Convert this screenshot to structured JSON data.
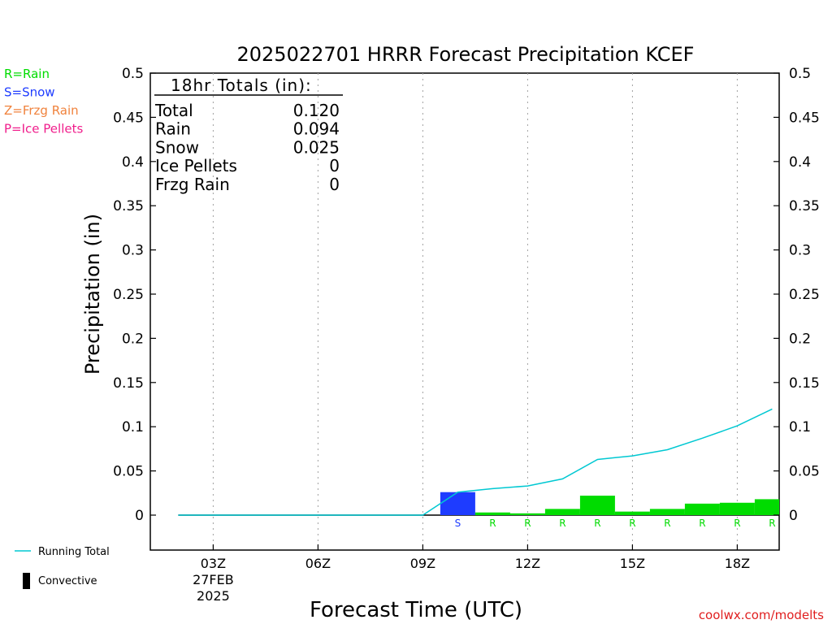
{
  "chart_data": {
    "type": "bar",
    "title": "2025022701 HRRR Forecast Precipitation KCEF",
    "xlabel": "Forecast Time (UTC)",
    "ylabel": "Precipitation (in)",
    "ylim": [
      0,
      0.5
    ],
    "y_ticks": [
      "0",
      "0.05",
      "0.1",
      "0.15",
      "0.2",
      "0.25",
      "0.3",
      "0.35",
      "0.4",
      "0.45",
      "0.5"
    ],
    "y_tick_values": [
      0,
      0.05,
      0.1,
      0.15,
      0.2,
      0.25,
      0.3,
      0.35,
      0.4,
      0.45,
      0.5
    ],
    "xlim": [
      1.2,
      19.2
    ],
    "x_ticks": [
      {
        "hour": 3,
        "label": "03Z",
        "sub1": "27FEB",
        "sub2": "2025"
      },
      {
        "hour": 6,
        "label": "06Z"
      },
      {
        "hour": 9,
        "label": "09Z"
      },
      {
        "hour": 12,
        "label": "12Z"
      },
      {
        "hour": 15,
        "label": "15Z"
      },
      {
        "hour": 18,
        "label": "18Z"
      }
    ],
    "bars": [
      {
        "hour": 10,
        "value": 0.026,
        "type": "S"
      },
      {
        "hour": 11,
        "value": 0.003,
        "type": "R"
      },
      {
        "hour": 12,
        "value": 0.002,
        "type": "R"
      },
      {
        "hour": 13,
        "value": 0.007,
        "type": "R"
      },
      {
        "hour": 14,
        "value": 0.022,
        "type": "R"
      },
      {
        "hour": 15,
        "value": 0.004,
        "type": "R"
      },
      {
        "hour": 16,
        "value": 0.007,
        "type": "R"
      },
      {
        "hour": 17,
        "value": 0.013,
        "type": "R"
      },
      {
        "hour": 18,
        "value": 0.014,
        "type": "R"
      },
      {
        "hour": 19,
        "value": 0.018,
        "type": "R"
      }
    ],
    "running_total": {
      "name": "Running Total",
      "x": [
        2,
        3,
        4,
        5,
        6,
        7,
        8,
        9,
        10,
        11,
        12,
        13,
        14,
        15,
        16,
        17,
        18,
        19
      ],
      "y": [
        0,
        0,
        0,
        0,
        0,
        0,
        0,
        0,
        0.026,
        0.03,
        0.033,
        0.041,
        0.063,
        0.067,
        0.074,
        0.087,
        0.101,
        0.12
      ]
    },
    "totals_box": {
      "title": "18hr Totals (in):",
      "rows": [
        {
          "label": "Total",
          "value": "0.120"
        },
        {
          "label": "Rain",
          "value": "0.094"
        },
        {
          "label": "Snow",
          "value": "0.025"
        },
        {
          "label": "Ice Pellets",
          "value": "0"
        },
        {
          "label": "Frzg Rain",
          "value": "0"
        }
      ]
    },
    "type_legend": [
      {
        "label": "R=Rain",
        "color": "#00dc00"
      },
      {
        "label": "S=Snow",
        "color": "#1e3cff"
      },
      {
        "label": "Z=Frzg Rain",
        "color": "#f0823c"
      },
      {
        "label": "P=Ice Pellets",
        "color": "#f01e8c"
      }
    ],
    "line_legend": [
      {
        "label": "Running Total",
        "color": "#00c8d2",
        "kind": "line"
      },
      {
        "label": "Convective",
        "color": "#000000",
        "kind": "box"
      }
    ],
    "colors": {
      "rain": "#00dc00",
      "snow": "#1e3cff",
      "running_total": "#00c8d2",
      "grid": "#a0a0a0"
    },
    "grid": true,
    "credit": "coolwx.com/modelts"
  }
}
